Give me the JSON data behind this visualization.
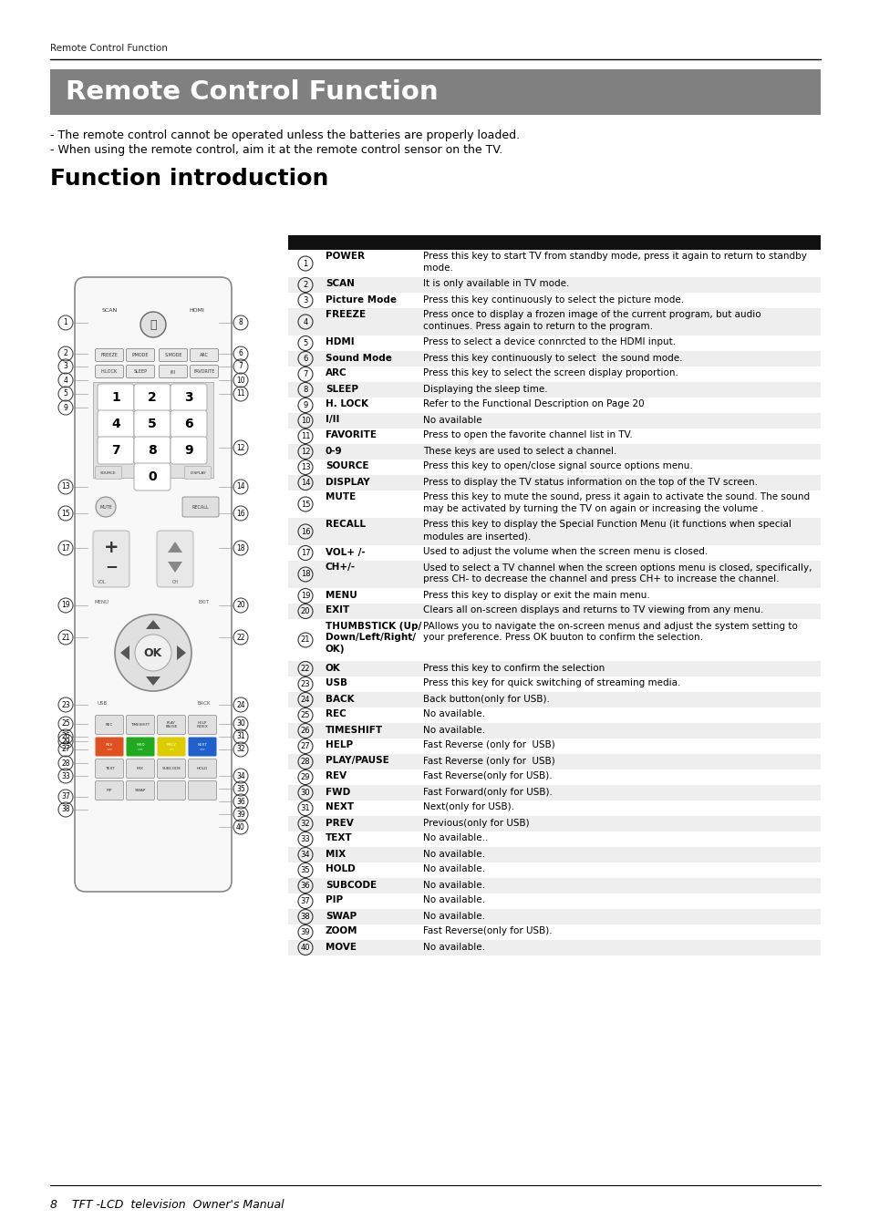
{
  "page_header": "Remote Control Function",
  "main_title": "Remote Control Function",
  "main_title_bg": "#808080",
  "subtitle": "Function introduction",
  "notes": [
    "- The remote control cannot be operated unless the batteries are properly loaded.",
    "- When using the remote control, aim it at the remote control sensor on the TV."
  ],
  "rows": [
    {
      "num": "1",
      "key": "POWER",
      "desc": "Press this key to start TV from standby mode, press it again to return to standby\nmode."
    },
    {
      "num": "2",
      "key": "SCAN",
      "desc": "It is only available in TV mode."
    },
    {
      "num": "3",
      "key": "Picture Mode",
      "desc": "Press this key continuously to select the picture mode."
    },
    {
      "num": "4",
      "key": "FREEZE",
      "desc": "Press once to display a frozen image of the current program, but audio\ncontinues. Press again to return to the program."
    },
    {
      "num": "5",
      "key": "HDMI",
      "desc": "Press to select a device connrcted to the HDMI input."
    },
    {
      "num": "6",
      "key": "Sound Mode",
      "desc": "Press this key continuously to select  the sound mode."
    },
    {
      "num": "7",
      "key": "ARC",
      "desc": "Press this key to select the screen display proportion."
    },
    {
      "num": "8",
      "key": "SLEEP",
      "desc": "Displaying the sleep time."
    },
    {
      "num": "9",
      "key": "H. LOCK",
      "desc": "Refer to the Functional Description on Page 20"
    },
    {
      "num": "10",
      "key": "I/II",
      "desc": "No available"
    },
    {
      "num": "11",
      "key": "FAVORITE",
      "desc": "Press to open the favorite channel list in TV."
    },
    {
      "num": "12",
      "key": "0-9",
      "desc": "These keys are used to select a channel."
    },
    {
      "num": "13",
      "key": "SOURCE",
      "desc": "Press this key to open/close signal source options menu."
    },
    {
      "num": "14",
      "key": "DISPLAY",
      "desc": "Press to display the TV status information on the top of the TV screen."
    },
    {
      "num": "15",
      "key": "MUTE",
      "desc": "Press this key to mute the sound, press it again to activate the sound. The sound\nmay be activated by turning the TV on again or increasing the volume ."
    },
    {
      "num": "16",
      "key": "RECALL",
      "desc": "Press this key to display the Special Function Menu (it functions when special\nmodules are inserted)."
    },
    {
      "num": "17",
      "key": "VOL+ /-",
      "desc": "Used to adjust the volume when the screen menu is closed."
    },
    {
      "num": "18",
      "key": "CH+/-",
      "desc": "Used to select a TV channel when the screen options menu is closed, specifically,\npress CH- to decrease the channel and press CH+ to increase the channel."
    },
    {
      "num": "19",
      "key": "MENU",
      "desc": "Press this key to display or exit the main menu."
    },
    {
      "num": "20",
      "key": "EXIT",
      "desc": "Clears all on-screen displays and returns to TV viewing from any menu."
    },
    {
      "num": "21",
      "key": "THUMBSTICK (Up/\nDown/Left/Right/\nOK)",
      "desc": "PAllows you to navigate the on-screen menus and adjust the system setting to\nyour preference. Press OK buuton to confirm the selection."
    },
    {
      "num": "22",
      "key": "OK",
      "desc": "Press this key to confirm the selection"
    },
    {
      "num": "23",
      "key": "USB",
      "desc": "Press this key for quick switching of streaming media."
    },
    {
      "num": "24",
      "key": "BACK",
      "desc": "Back button(only for USB)."
    },
    {
      "num": "25",
      "key": "REC",
      "desc": "No available."
    },
    {
      "num": "26",
      "key": "TIMESHIFT",
      "desc": "No available."
    },
    {
      "num": "27",
      "key": "HELP",
      "desc": "Fast Reverse (only for  USB)"
    },
    {
      "num": "28",
      "key": "PLAY/PAUSE",
      "desc": "Fast Reverse (only for  USB)"
    },
    {
      "num": "29",
      "key": "REV",
      "desc": "Fast Reverse(only for USB)."
    },
    {
      "num": "30",
      "key": "FWD",
      "desc": "Fast Forward(only for USB)."
    },
    {
      "num": "31",
      "key": "NEXT",
      "desc": "Next(only for USB)."
    },
    {
      "num": "32",
      "key": "PREV",
      "desc": "Previous(only for USB)"
    },
    {
      "num": "33",
      "key": "TEXT",
      "desc": "No available.."
    },
    {
      "num": "34",
      "key": "MIX",
      "desc": "No available."
    },
    {
      "num": "35",
      "key": "HOLD",
      "desc": "No available."
    },
    {
      "num": "36",
      "key": "SUBCODE",
      "desc": "No available."
    },
    {
      "num": "37",
      "key": "PIP",
      "desc": "No available."
    },
    {
      "num": "38",
      "key": "SWAP",
      "desc": "No available."
    },
    {
      "num": "39",
      "key": "ZOOM",
      "desc": "Fast Reverse(only for USB)."
    },
    {
      "num": "40",
      "key": "MOVE",
      "desc": "No available."
    }
  ],
  "footer_text": "8    TFT -LCD  television  Owner's Manual",
  "bg_color": "#ffffff"
}
